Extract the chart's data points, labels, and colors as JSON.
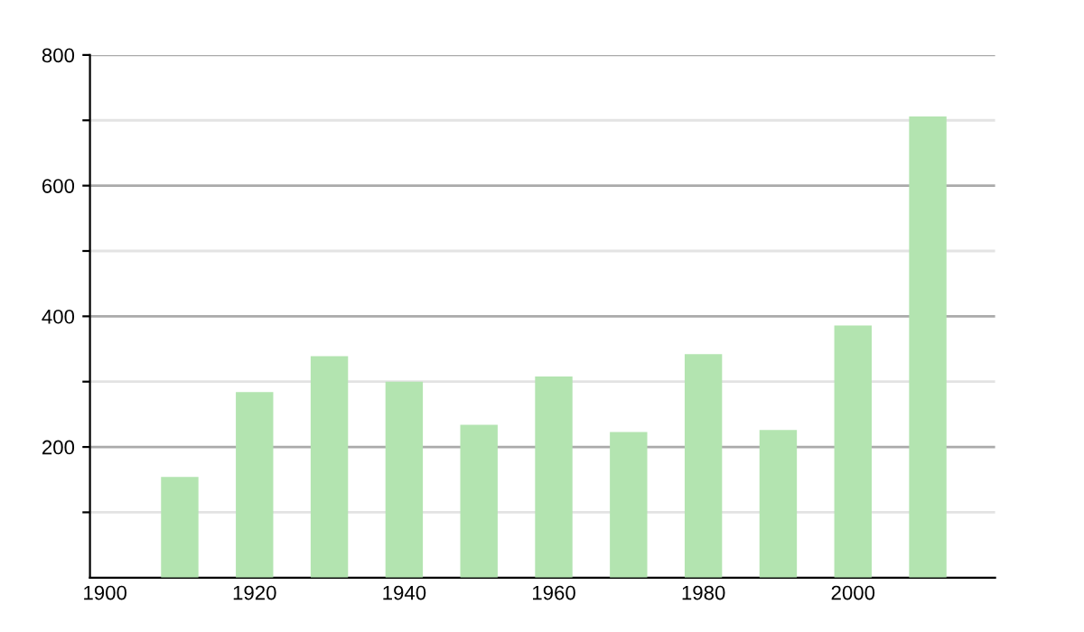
{
  "chart_data": {
    "type": "bar",
    "x": [
      1910,
      1920,
      1930,
      1940,
      1950,
      1960,
      1970,
      1980,
      1990,
      2000,
      2010
    ],
    "values": [
      154,
      284,
      339,
      300,
      234,
      308,
      223,
      342,
      226,
      386,
      706
    ],
    "color": "#b3e4b0",
    "xlim": [
      1898,
      2019
    ],
    "xticks": [
      1900,
      1920,
      1940,
      1960,
      1980,
      2000
    ],
    "ylim": [
      0,
      800
    ],
    "yticks": [
      {
        "value": 100,
        "label": null
      },
      200,
      {
        "value": 300,
        "label": null
      },
      400,
      {
        "value": 500,
        "label": null
      },
      600,
      {
        "value": 700,
        "label": null
      },
      800
    ],
    "grid": "y"
  }
}
